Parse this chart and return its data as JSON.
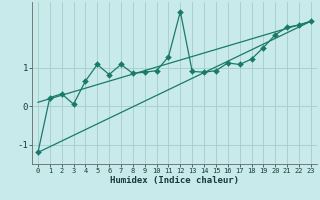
{
  "title": "",
  "xlabel": "Humidex (Indice chaleur)",
  "bg_color": "#c8eaea",
  "grid_color": "#aad0d0",
  "line_color": "#1a7a6a",
  "xlim": [
    -0.5,
    23.5
  ],
  "ylim": [
    -1.5,
    2.7
  ],
  "xticks": [
    0,
    1,
    2,
    3,
    4,
    5,
    6,
    7,
    8,
    9,
    10,
    11,
    12,
    13,
    14,
    15,
    16,
    17,
    18,
    19,
    20,
    21,
    22,
    23
  ],
  "yticks": [
    -1,
    0,
    1
  ],
  "scatter_x": [
    0,
    1,
    2,
    3,
    4,
    5,
    6,
    7,
    8,
    9,
    10,
    11,
    12,
    13,
    14,
    15,
    16,
    17,
    18,
    19,
    20,
    21,
    22,
    23
  ],
  "scatter_y": [
    -1.2,
    0.22,
    0.32,
    0.05,
    0.65,
    1.08,
    0.82,
    1.08,
    0.85,
    0.88,
    0.92,
    1.28,
    2.45,
    0.9,
    0.88,
    0.92,
    1.12,
    1.08,
    1.22,
    1.52,
    1.85,
    2.05,
    2.1,
    2.2
  ],
  "line1_x": [
    0,
    23
  ],
  "line1_y": [
    -1.2,
    2.2
  ],
  "line2_x": [
    0,
    23
  ],
  "line2_y": [
    0.1,
    2.2
  ],
  "marker_size": 3
}
